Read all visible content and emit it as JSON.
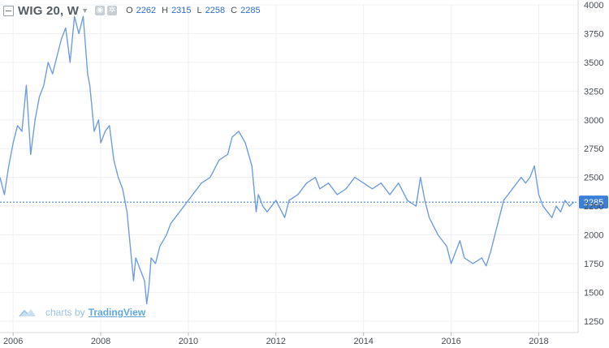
{
  "legend": {
    "symbol": "WIG 20, W",
    "open_label": "O",
    "open_value": "2262",
    "high_label": "H",
    "high_value": "2315",
    "low_label": "L",
    "low_value": "2258",
    "close_label": "C",
    "close_value": "2285"
  },
  "watermark": {
    "prefix": "charts by",
    "brand": "TradingView"
  },
  "colors": {
    "line": "#6f9ee0",
    "price_line": "#3b7fd6",
    "grid": "#eef0f3",
    "label_bg": "#3b7fd6"
  },
  "chart_data": {
    "type": "line",
    "title": "WIG 20, W",
    "xlabel": "",
    "ylabel": "",
    "x_ticks": [
      "2006",
      "2008",
      "2010",
      "2012",
      "2014",
      "2016",
      "2018"
    ],
    "y_ticks": [
      1250,
      1500,
      1750,
      2000,
      2250,
      2500,
      2750,
      3000,
      3250,
      3500,
      3750,
      4000
    ],
    "xlim": [
      2005.7,
      2018.9
    ],
    "ylim": [
      1150,
      4000
    ],
    "last_value": 2285,
    "last_value_label": "2285",
    "grid": true,
    "series": [
      {
        "x": [
          2005.7,
          2005.8,
          2005.9,
          2006.0,
          2006.1,
          2006.2,
          2006.3,
          2006.4,
          2006.5,
          2006.6,
          2006.7,
          2006.8,
          2006.9,
          2007.0,
          2007.1,
          2007.2,
          2007.3,
          2007.4,
          2007.5,
          2007.6,
          2007.7,
          2007.75,
          2007.85,
          2007.95,
          2008.0,
          2008.1,
          2008.2,
          2008.3,
          2008.4,
          2008.5,
          2008.6,
          2008.7,
          2008.75,
          2008.8,
          2008.9,
          2009.0,
          2009.05,
          2009.1,
          2009.15,
          2009.25,
          2009.35,
          2009.5,
          2009.6,
          2009.8,
          2010.0,
          2010.2,
          2010.3,
          2010.5,
          2010.7,
          2010.9,
          2011.0,
          2011.15,
          2011.3,
          2011.45,
          2011.55,
          2011.6,
          2011.7,
          2011.8,
          2012.0,
          2012.2,
          2012.3,
          2012.5,
          2012.7,
          2012.9,
          2013.0,
          2013.2,
          2013.4,
          2013.6,
          2013.8,
          2014.0,
          2014.2,
          2014.4,
          2014.6,
          2014.8,
          2015.0,
          2015.2,
          2015.3,
          2015.4,
          2015.5,
          2015.7,
          2015.9,
          2016.0,
          2016.1,
          2016.2,
          2016.3,
          2016.5,
          2016.7,
          2016.8,
          2016.9,
          2017.0,
          2017.1,
          2017.2,
          2017.3,
          2017.4,
          2017.5,
          2017.6,
          2017.7,
          2017.8,
          2017.9,
          2018.0,
          2018.1,
          2018.2,
          2018.3,
          2018.4,
          2018.5,
          2018.6,
          2018.7,
          2018.8
        ],
        "y": [
          2500,
          2350,
          2600,
          2800,
          2950,
          2900,
          3300,
          2700,
          3000,
          3200,
          3300,
          3500,
          3400,
          3550,
          3700,
          3800,
          3500,
          3900,
          3750,
          3900,
          3400,
          3300,
          2900,
          3000,
          2800,
          2900,
          2950,
          2650,
          2500,
          2400,
          2200,
          1800,
          1600,
          1800,
          1700,
          1600,
          1400,
          1550,
          1800,
          1750,
          1900,
          2000,
          2100,
          2200,
          2300,
          2400,
          2450,
          2500,
          2650,
          2700,
          2850,
          2900,
          2800,
          2600,
          2200,
          2350,
          2250,
          2200,
          2300,
          2150,
          2300,
          2350,
          2450,
          2500,
          2400,
          2450,
          2350,
          2400,
          2500,
          2450,
          2400,
          2450,
          2350,
          2450,
          2300,
          2250,
          2500,
          2300,
          2150,
          2000,
          1900,
          1750,
          1850,
          1950,
          1800,
          1750,
          1800,
          1730,
          1850,
          2000,
          2150,
          2300,
          2350,
          2400,
          2450,
          2500,
          2450,
          2500,
          2600,
          2350,
          2250,
          2200,
          2150,
          2250,
          2200,
          2300,
          2250,
          2285
        ]
      }
    ]
  }
}
